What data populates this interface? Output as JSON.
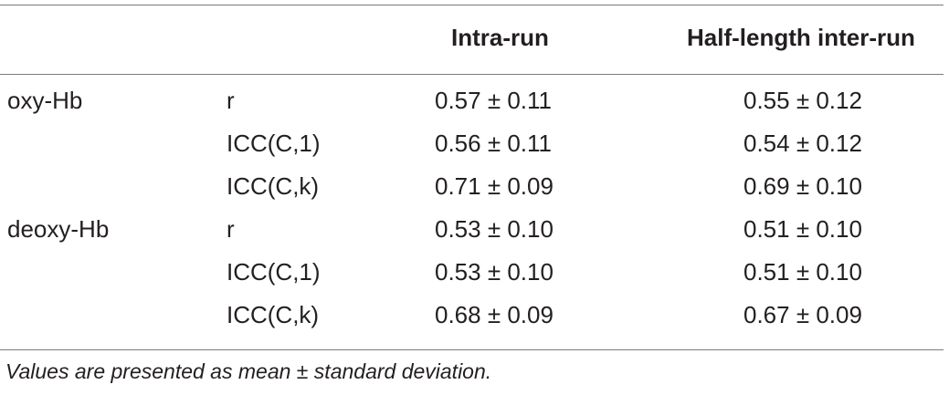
{
  "table": {
    "columns": [
      "",
      "",
      "Intra-run",
      "Half-length inter-run"
    ],
    "rows": [
      {
        "group": "oxy-Hb",
        "metric": "r",
        "intra": "0.57 ± 0.11",
        "half": "0.55 ± 0.12"
      },
      {
        "group": "",
        "metric": "ICC(C,1)",
        "intra": "0.56 ± 0.11",
        "half": "0.54 ± 0.12"
      },
      {
        "group": "",
        "metric": "ICC(C,k)",
        "intra": "0.71 ± 0.09",
        "half": "0.69 ± 0.10"
      },
      {
        "group": "deoxy-Hb",
        "metric": "r",
        "intra": "0.53 ± 0.10",
        "half": "0.51 ± 0.10"
      },
      {
        "group": "",
        "metric": "ICC(C,1)",
        "intra": "0.53 ± 0.10",
        "half": "0.51 ± 0.10"
      },
      {
        "group": "",
        "metric": "ICC(C,k)",
        "intra": "0.68 ± 0.09",
        "half": "0.67 ± 0.09"
      }
    ]
  },
  "footnote": "Values are presented as mean ± standard deviation."
}
